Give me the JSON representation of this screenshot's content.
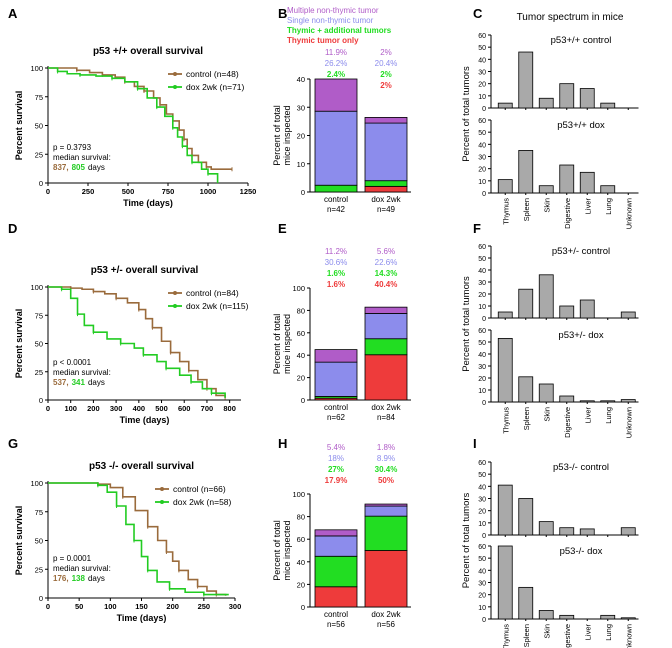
{
  "colors": {
    "control": "#9a6b3c",
    "dox": "#22cc22",
    "multiple": "#b05cc8",
    "single": "#8c8cec",
    "thymic_plus": "#22dd22",
    "thymic_only": "#ee3b3b",
    "bar_gray": "#a9a9a9"
  },
  "legend_B": {
    "multiple": "Multiple non-thymic tumor",
    "single": "Single non-thymic tumor",
    "thymic_plus": "Thymic + additional tumors",
    "thymic_only": "Thymic tumor only"
  },
  "column_C_title": "Tumor spectrum in mice",
  "chart_data": [
    {
      "panel": "A",
      "type": "line",
      "title": "p53 +/+ overall survival",
      "xlabel": "Time (days)",
      "ylabel": "Percent survival",
      "xlim": [
        0,
        1250
      ],
      "ylim": [
        0,
        100
      ],
      "xticks": [
        0,
        250,
        500,
        750,
        1000,
        1250
      ],
      "xtick_labels": [
        "0",
        "250",
        "500",
        "750",
        "1000",
        "1250"
      ],
      "yticks": [
        0,
        25,
        50,
        75,
        100
      ],
      "series": [
        {
          "name": "control (n=48)",
          "color": "control",
          "x": [
            0,
            180,
            260,
            340,
            420,
            480,
            540,
            600,
            660,
            700,
            740,
            780,
            820,
            850,
            870,
            900,
            940,
            990,
            1020,
            1150
          ],
          "y": [
            100,
            98,
            96,
            94,
            92,
            88,
            84,
            80,
            74,
            68,
            60,
            54,
            46,
            38,
            30,
            24,
            18,
            14,
            12,
            12
          ]
        },
        {
          "name": "dox 2wk (n=71)",
          "color": "dox",
          "x": [
            0,
            60,
            120,
            200,
            300,
            400,
            480,
            560,
            620,
            680,
            730,
            780,
            810,
            840,
            870,
            900,
            960,
            1000,
            1060
          ],
          "y": [
            100,
            97,
            95,
            94,
            93,
            91,
            88,
            82,
            74,
            66,
            58,
            48,
            40,
            32,
            24,
            18,
            12,
            8,
            0
          ]
        }
      ],
      "annotation": {
        "p": "p = 0.3793",
        "label": "median survival:",
        "control": "837,",
        "dox": "805",
        "unit": "days"
      }
    },
    {
      "panel": "D",
      "type": "line",
      "title": "p53 +/- overall survival",
      "xlabel": "Time (days)",
      "ylabel": "Percent survival",
      "xlim": [
        0,
        850
      ],
      "ylim": [
        0,
        100
      ],
      "xticks": [
        0,
        100,
        200,
        300,
        400,
        500,
        600,
        700,
        800
      ],
      "xtick_labels": [
        "0",
        "100",
        "200",
        "300",
        "400",
        "500",
        "600",
        "700",
        "800"
      ],
      "yticks": [
        0,
        25,
        50,
        75,
        100
      ],
      "series": [
        {
          "name": "control (n=84)",
          "color": "control",
          "x": [
            0,
            100,
            150,
            200,
            250,
            300,
            350,
            400,
            430,
            460,
            500,
            540,
            580,
            620,
            660,
            700,
            740,
            780
          ],
          "y": [
            100,
            99,
            98,
            96,
            94,
            90,
            86,
            80,
            72,
            64,
            52,
            42,
            34,
            26,
            18,
            10,
            4,
            2
          ]
        },
        {
          "name": "dox 2wk (n=115)",
          "color": "dox",
          "x": [
            0,
            60,
            100,
            130,
            160,
            200,
            260,
            320,
            380,
            420,
            480,
            520,
            580,
            630,
            680,
            720,
            780
          ],
          "y": [
            100,
            98,
            90,
            76,
            66,
            60,
            54,
            50,
            46,
            40,
            34,
            28,
            22,
            16,
            10,
            6,
            2
          ]
        }
      ],
      "annotation": {
        "p": "p < 0.0001",
        "label": "median survival:",
        "control": "537,",
        "dox": "341",
        "unit": "days"
      }
    },
    {
      "panel": "G",
      "type": "line",
      "title": "p53 -/- overall survival",
      "xlabel": "Time (days)",
      "ylabel": "Percent survival",
      "xlim": [
        0,
        300
      ],
      "ylim": [
        0,
        100
      ],
      "xticks": [
        0,
        50,
        100,
        150,
        200,
        250,
        300
      ],
      "xtick_labels": [
        "0",
        "50",
        "100",
        "150",
        "200",
        "250",
        "300"
      ],
      "yticks": [
        0,
        25,
        50,
        75,
        100
      ],
      "series": [
        {
          "name": "control (n=66)",
          "color": "control",
          "x": [
            0,
            80,
            100,
            120,
            140,
            160,
            176,
            190,
            200,
            210,
            225,
            240,
            255,
            270,
            285
          ],
          "y": [
            100,
            99,
            96,
            88,
            76,
            62,
            50,
            40,
            32,
            24,
            16,
            10,
            6,
            3,
            2
          ]
        },
        {
          "name": "dox 2wk (n=58)",
          "color": "dox",
          "x": [
            0,
            80,
            95,
            110,
            125,
            138,
            150,
            160,
            175,
            195,
            220,
            250,
            290
          ],
          "y": [
            100,
            98,
            92,
            80,
            64,
            50,
            36,
            24,
            14,
            8,
            5,
            3,
            3
          ]
        }
      ],
      "annotation": {
        "p": "p = 0.0001",
        "label": "median survival:",
        "control": "176,",
        "dox": "138",
        "unit": "days"
      }
    },
    {
      "panel": "B",
      "type": "bar",
      "stacked": true,
      "ylabel": "Percent of total\nmice inspected",
      "ylim": [
        0,
        40
      ],
      "yticks": [
        0,
        10,
        20,
        30,
        40
      ],
      "categories": [
        "control",
        "dox 2wk"
      ],
      "n_labels": [
        "n=42",
        "n=49"
      ],
      "series": [
        {
          "name": "Thymic tumor only",
          "color": "thymic_only",
          "values": [
            0,
            2
          ]
        },
        {
          "name": "Thymic + additional tumors",
          "color": "thymic_plus",
          "values": [
            2.4,
            2
          ]
        },
        {
          "name": "Single non-thymic tumor",
          "color": "single",
          "values": [
            26.2,
            20.4
          ]
        },
        {
          "name": "Multiple non-thymic tumor",
          "color": "multiple",
          "values": [
            11.9,
            2
          ]
        }
      ],
      "value_labels": [
        {
          "multiple": "11.9%",
          "single": "26.2%",
          "thymic_plus": "2.4%",
          "thymic_only": ""
        },
        {
          "multiple": "2%",
          "single": "20.4%",
          "thymic_plus": "2%",
          "thymic_only": "2%"
        }
      ]
    },
    {
      "panel": "E",
      "type": "bar",
      "stacked": true,
      "ylabel": "Percent of total\nmice inspected",
      "ylim": [
        0,
        100
      ],
      "yticks": [
        0,
        20,
        40,
        60,
        80,
        100
      ],
      "categories": [
        "control",
        "dox 2wk"
      ],
      "n_labels": [
        "n=62",
        "n=84"
      ],
      "series": [
        {
          "name": "Thymic tumor only",
          "color": "thymic_only",
          "values": [
            1.6,
            40.4
          ]
        },
        {
          "name": "Thymic + additional tumors",
          "color": "thymic_plus",
          "values": [
            1.6,
            14.3
          ]
        },
        {
          "name": "Single non-thymic tumor",
          "color": "single",
          "values": [
            30.6,
            22.6
          ]
        },
        {
          "name": "Multiple non-thymic tumor",
          "color": "multiple",
          "values": [
            11.2,
            5.6
          ]
        }
      ],
      "value_labels": [
        {
          "multiple": "11.2%",
          "single": "30.6%",
          "thymic_plus": "1.6%",
          "thymic_only": "1.6%"
        },
        {
          "multiple": "5.6%",
          "single": "22.6%",
          "thymic_plus": "14.3%",
          "thymic_only": "40.4%"
        }
      ]
    },
    {
      "panel": "H",
      "type": "bar",
      "stacked": true,
      "ylabel": "Percent of total\nmice inspected",
      "ylim": [
        0,
        100
      ],
      "yticks": [
        0,
        20,
        40,
        60,
        80,
        100
      ],
      "categories": [
        "control",
        "dox 2wk"
      ],
      "n_labels": [
        "n=56",
        "n=56"
      ],
      "series": [
        {
          "name": "Thymic tumor only",
          "color": "thymic_only",
          "values": [
            17.9,
            50
          ]
        },
        {
          "name": "Thymic + additional tumors",
          "color": "thymic_plus",
          "values": [
            27,
            30.4
          ]
        },
        {
          "name": "Single non-thymic tumor",
          "color": "single",
          "values": [
            18,
            8.9
          ]
        },
        {
          "name": "Multiple non-thymic tumor",
          "color": "multiple",
          "values": [
            5.4,
            1.8
          ]
        }
      ],
      "value_labels": [
        {
          "multiple": "5.4%",
          "single": "18%",
          "thymic_plus": "27%",
          "thymic_only": "17.9%"
        },
        {
          "multiple": "1.8%",
          "single": "8.9%",
          "thymic_plus": "30.4%",
          "thymic_only": "50%"
        }
      ]
    },
    {
      "panel": "C",
      "type": "bar",
      "categories": [
        "Thymus",
        "Spleen",
        "Skin",
        "Digestive",
        "Liver",
        "Lung",
        "Unknown"
      ],
      "ylabel": "Percent of total tumors",
      "ylim": [
        0,
        60
      ],
      "yticks": [
        0,
        10,
        20,
        30,
        40,
        50,
        60
      ],
      "sub": [
        {
          "title": "p53+/+ control",
          "values": [
            4,
            46,
            8,
            20,
            16,
            4,
            0
          ]
        },
        {
          "title": "p53+/+ dox",
          "values": [
            11,
            35,
            6,
            23,
            17,
            6,
            0
          ]
        }
      ]
    },
    {
      "panel": "F",
      "type": "bar",
      "categories": [
        "Thymus",
        "Spleen",
        "Skin",
        "Digestive",
        "Liver",
        "Lung",
        "Unknown"
      ],
      "ylabel": "Percent of total tumors",
      "ylim": [
        0,
        60
      ],
      "yticks": [
        0,
        10,
        20,
        30,
        40,
        50,
        60
      ],
      "sub": [
        {
          "title": "p53+/- control",
          "values": [
            5,
            24,
            36,
            10,
            15,
            0,
            5
          ]
        },
        {
          "title": "p53+/- dox",
          "values": [
            53,
            21,
            15,
            5,
            1,
            1,
            2
          ]
        }
      ]
    },
    {
      "panel": "I",
      "type": "bar",
      "categories": [
        "Thymus",
        "Spleen",
        "Skin",
        "Digestive",
        "Liver",
        "Lung",
        "Unknown"
      ],
      "ylabel": "Percent of total tumors",
      "ylim": [
        0,
        60
      ],
      "yticks": [
        0,
        10,
        20,
        30,
        40,
        50,
        60
      ],
      "sub": [
        {
          "title": "p53-/- control",
          "values": [
            41,
            30,
            11,
            6,
            5,
            0,
            6
          ]
        },
        {
          "title": "p53-/- dox",
          "values": [
            60,
            26,
            7,
            3,
            0,
            3,
            1
          ]
        }
      ]
    }
  ]
}
